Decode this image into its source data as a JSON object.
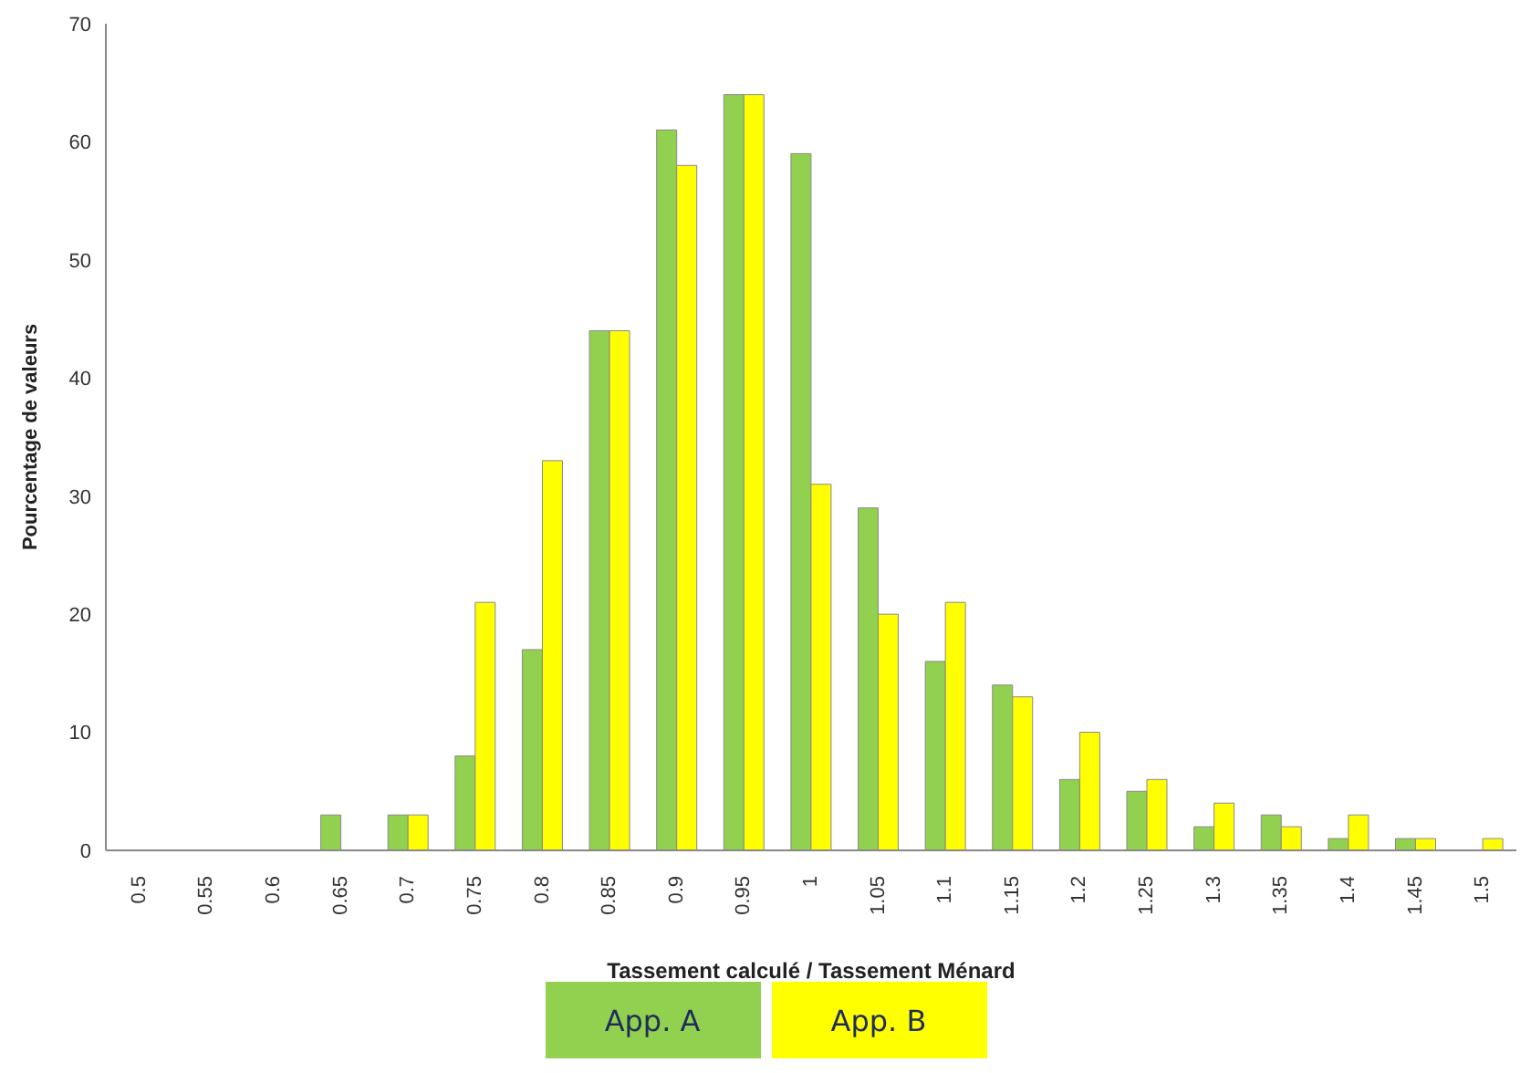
{
  "chart_data": {
    "type": "bar",
    "xlabel": "Tassement calculé / Tassement Ménard",
    "ylabel": "Pourcentage de valeurs",
    "categories": [
      "0.5",
      "0.55",
      "0.6",
      "0.65",
      "0.7",
      "0.75",
      "0.8",
      "0.85",
      "0.9",
      "0.95",
      "1",
      "1.05",
      "1.1",
      "1.15",
      "1.2",
      "1.25",
      "1.3",
      "1.35",
      "1.4",
      "1.45",
      "1.5"
    ],
    "series": [
      {
        "name": "App. A",
        "color": "#92d050",
        "values": [
          0,
          0,
          0,
          3,
          3,
          8,
          17,
          44,
          61,
          64,
          59,
          29,
          16,
          14,
          6,
          5,
          2,
          3,
          1,
          1,
          0
        ]
      },
      {
        "name": "App. B",
        "color": "#ffff00",
        "values": [
          0,
          0,
          0,
          0,
          3,
          21,
          33,
          44,
          58,
          64,
          31,
          20,
          21,
          13,
          10,
          6,
          4,
          2,
          3,
          1,
          1
        ]
      }
    ],
    "ylim": [
      0,
      70
    ],
    "yticks": [
      0,
      10,
      20,
      30,
      40,
      50,
      60,
      70
    ],
    "grid": false,
    "legend": "bottom"
  }
}
